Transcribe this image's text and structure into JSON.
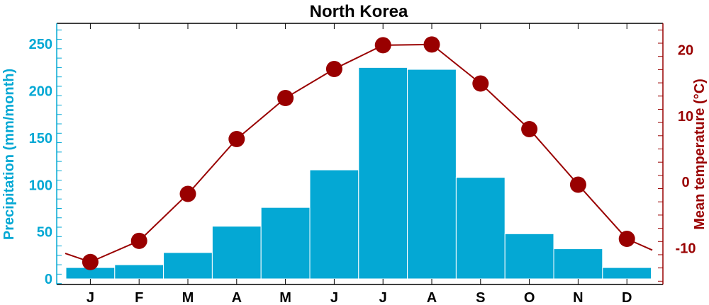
{
  "chart_data": {
    "type": "bar+line",
    "title": "North Korea",
    "categories": [
      "J",
      "F",
      "M",
      "A",
      "M",
      "J",
      "J",
      "A",
      "S",
      "O",
      "N",
      "D"
    ],
    "precipitation": {
      "ylabel": "Precipitation (mm/month)",
      "ylim": [
        -6,
        272
      ],
      "ticks": [
        0,
        50,
        100,
        150,
        200,
        250
      ],
      "values": [
        12,
        15,
        28,
        56,
        76,
        116,
        225,
        223,
        108,
        48,
        32,
        12
      ],
      "color": "#04a8d4"
    },
    "temperature": {
      "ylabel": "Mean temperature (°C)",
      "ylim": [
        -15.5,
        24
      ],
      "ticks": [
        -10,
        0,
        10,
        20
      ],
      "values": [
        -12.1,
        -8.9,
        -1.8,
        6.5,
        12.7,
        17.1,
        20.7,
        20.8,
        14.9,
        8.0,
        -0.4,
        -8.6
      ],
      "edge_values": [
        -10.8,
        -10.3
      ],
      "color": "#990000"
    },
    "grid": false,
    "legend": "none"
  }
}
